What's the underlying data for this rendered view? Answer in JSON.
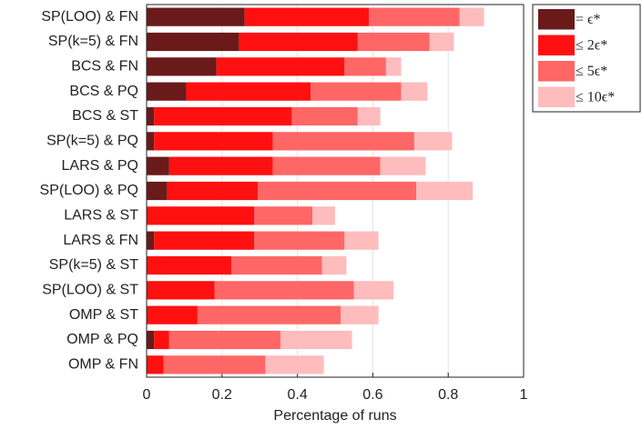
{
  "chart_data": {
    "type": "stacked-barh",
    "x_label": "Percentage of runs",
    "categories": [
      "SP(LOO) & FN",
      "SP(k=5) & FN",
      "BCS & FN",
      "BCS & PQ",
      "BCS & ST",
      "SP(k=5) & PQ",
      "LARS & PQ",
      "SP(LOO) & PQ",
      "LARS & ST",
      "LARS & FN",
      "SP(k=5) & ST",
      "SP(LOO) & ST",
      "OMP & ST",
      "OMP & PQ",
      "OMP & FN"
    ],
    "series": [
      {
        "name": "= ϵ*",
        "color": "#6b1a1a",
        "values": [
          0.26,
          0.245,
          0.185,
          0.105,
          0.02,
          0.02,
          0.06,
          0.055,
          0,
          0.02,
          0,
          0,
          0,
          0.02,
          0
        ]
      },
      {
        "name": "≤ 2ϵ*",
        "color": "#ff1010",
        "values": [
          0.33,
          0.315,
          0.34,
          0.33,
          0.365,
          0.315,
          0.275,
          0.24,
          0.285,
          0.265,
          0.225,
          0.18,
          0.135,
          0.04,
          0.045
        ]
      },
      {
        "name": "≤ 5ϵ*",
        "color": "#ff6666",
        "values": [
          0.24,
          0.19,
          0.11,
          0.24,
          0.175,
          0.375,
          0.285,
          0.42,
          0.155,
          0.24,
          0.24,
          0.37,
          0.38,
          0.295,
          0.27
        ]
      },
      {
        "name": "≤ 10ϵ*",
        "color": "#ffbcbc",
        "values": [
          0.065,
          0.065,
          0.04,
          0.07,
          0.06,
          0.1,
          0.12,
          0.15,
          0.06,
          0.09,
          0.065,
          0.105,
          0.1,
          0.19,
          0.155
        ]
      }
    ],
    "xlim": [
      0,
      1
    ],
    "xticks": [
      0,
      0.2,
      0.4,
      0.6,
      0.8,
      1
    ],
    "grid": true,
    "legend": "right"
  }
}
